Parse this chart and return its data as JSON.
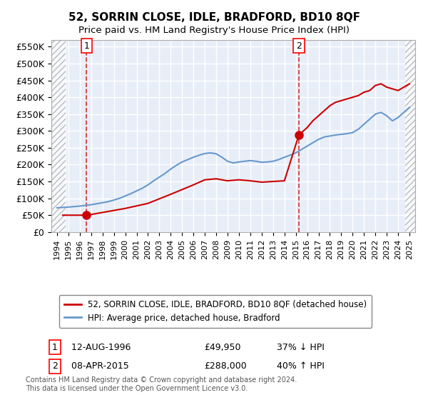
{
  "title": "52, SORRIN CLOSE, IDLE, BRADFORD, BD10 8QF",
  "subtitle": "Price paid vs. HM Land Registry's House Price Index (HPI)",
  "ylabel": "",
  "xlabel": "",
  "xlim": [
    1993.5,
    2025.5
  ],
  "ylim": [
    0,
    570000
  ],
  "yticks": [
    0,
    50000,
    100000,
    150000,
    200000,
    250000,
    300000,
    350000,
    400000,
    450000,
    500000,
    550000
  ],
  "ytick_labels": [
    "£0",
    "£50K",
    "£100K",
    "£150K",
    "£200K",
    "£250K",
    "£300K",
    "£350K",
    "£400K",
    "£450K",
    "£500K",
    "£550K"
  ],
  "xticks": [
    1994,
    1995,
    1996,
    1997,
    1998,
    1999,
    2000,
    2001,
    2002,
    2003,
    2004,
    2005,
    2006,
    2007,
    2008,
    2009,
    2010,
    2011,
    2012,
    2013,
    2014,
    2015,
    2016,
    2017,
    2018,
    2019,
    2020,
    2021,
    2022,
    2023,
    2024,
    2025
  ],
  "legend_label_red": "52, SORRIN CLOSE, IDLE, BRADFORD, BD10 8QF (detached house)",
  "legend_label_blue": "HPI: Average price, detached house, Bradford",
  "point1_x": 1996.6,
  "point1_y": 49950,
  "point1_label": "1",
  "point1_date": "12-AUG-1996",
  "point1_price": "£49,950",
  "point1_hpi": "37% ↓ HPI",
  "point2_x": 2015.27,
  "point2_y": 288000,
  "point2_label": "2",
  "point2_date": "08-APR-2015",
  "point2_price": "£288,000",
  "point2_hpi": "40% ↑ HPI",
  "red_color": "#cc0000",
  "blue_color": "#6699cc",
  "hatch_color": "#cccccc",
  "grid_color": "#cccccc",
  "bg_color": "#e8eef8",
  "footer": "Contains HM Land Registry data © Crown copyright and database right 2024.\nThis data is licensed under the Open Government Licence v3.0.",
  "hpi_x": [
    1994,
    1994.5,
    1995,
    1995.5,
    1996,
    1996.5,
    1997,
    1997.5,
    1998,
    1998.5,
    1999,
    1999.5,
    2000,
    2000.5,
    2001,
    2001.5,
    2002,
    2002.5,
    2003,
    2003.5,
    2004,
    2004.5,
    2005,
    2005.5,
    2006,
    2006.5,
    2007,
    2007.5,
    2008,
    2008.5,
    2009,
    2009.5,
    2010,
    2010.5,
    2011,
    2011.5,
    2012,
    2012.5,
    2013,
    2013.5,
    2014,
    2014.5,
    2015,
    2015.5,
    2016,
    2016.5,
    2017,
    2017.5,
    2018,
    2018.5,
    2019,
    2019.5,
    2020,
    2020.5,
    2021,
    2021.5,
    2022,
    2022.5,
    2023,
    2023.5,
    2024,
    2024.5,
    2025
  ],
  "hpi_y": [
    72000,
    73000,
    74000,
    75500,
    77000,
    79000,
    81000,
    84000,
    87000,
    90000,
    95000,
    100000,
    107000,
    114000,
    122000,
    130000,
    140000,
    152000,
    163000,
    174000,
    187000,
    198000,
    208000,
    215000,
    222000,
    228000,
    233000,
    235000,
    232000,
    222000,
    210000,
    205000,
    208000,
    210000,
    212000,
    210000,
    207000,
    208000,
    210000,
    215000,
    222000,
    228000,
    235000,
    245000,
    255000,
    265000,
    275000,
    282000,
    285000,
    288000,
    290000,
    292000,
    295000,
    305000,
    320000,
    335000,
    350000,
    355000,
    345000,
    330000,
    340000,
    355000,
    370000
  ],
  "price_x": [
    1994.5,
    1996.6,
    1997,
    1997.5,
    1998,
    2000,
    2002,
    2004,
    2006,
    2007,
    2008,
    2009,
    2010,
    2011,
    2012,
    2013,
    2014,
    2015.27,
    2016,
    2016.5,
    2017,
    2017.5,
    2018,
    2018.5,
    2019,
    2019.5,
    2020,
    2020.5,
    2021,
    2021.5,
    2022,
    2022.5,
    2023,
    2023.5,
    2024,
    2024.5,
    2025
  ],
  "price_y": [
    49950,
    49950,
    52000,
    55000,
    58000,
    70000,
    85000,
    112000,
    140000,
    155000,
    158000,
    152000,
    155000,
    152000,
    148000,
    150000,
    152000,
    288000,
    310000,
    330000,
    345000,
    360000,
    375000,
    385000,
    390000,
    395000,
    400000,
    405000,
    415000,
    420000,
    435000,
    440000,
    430000,
    425000,
    420000,
    430000,
    440000
  ]
}
